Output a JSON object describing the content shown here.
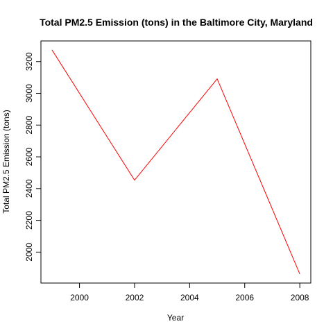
{
  "chart_data": {
    "type": "line",
    "title": "Total PM2.5 Emission (tons) in the Baltimore City, Maryland",
    "xlabel": "Year",
    "ylabel": "Total PM2.5 Emission (tons)",
    "x": [
      1999,
      2002,
      2005,
      2008
    ],
    "series": [
      {
        "values": [
          3274,
          2453,
          3091,
          1862
        ],
        "color": "#ff0000"
      }
    ],
    "xlim": [
      1998.6,
      2008.4
    ],
    "ylim": [
      1805,
      3330
    ],
    "xticks": [
      2000,
      2002,
      2004,
      2006,
      2008
    ],
    "yticks": [
      2000,
      2200,
      2400,
      2600,
      2800,
      3000,
      3200
    ],
    "grid": false,
    "legend": "none"
  }
}
